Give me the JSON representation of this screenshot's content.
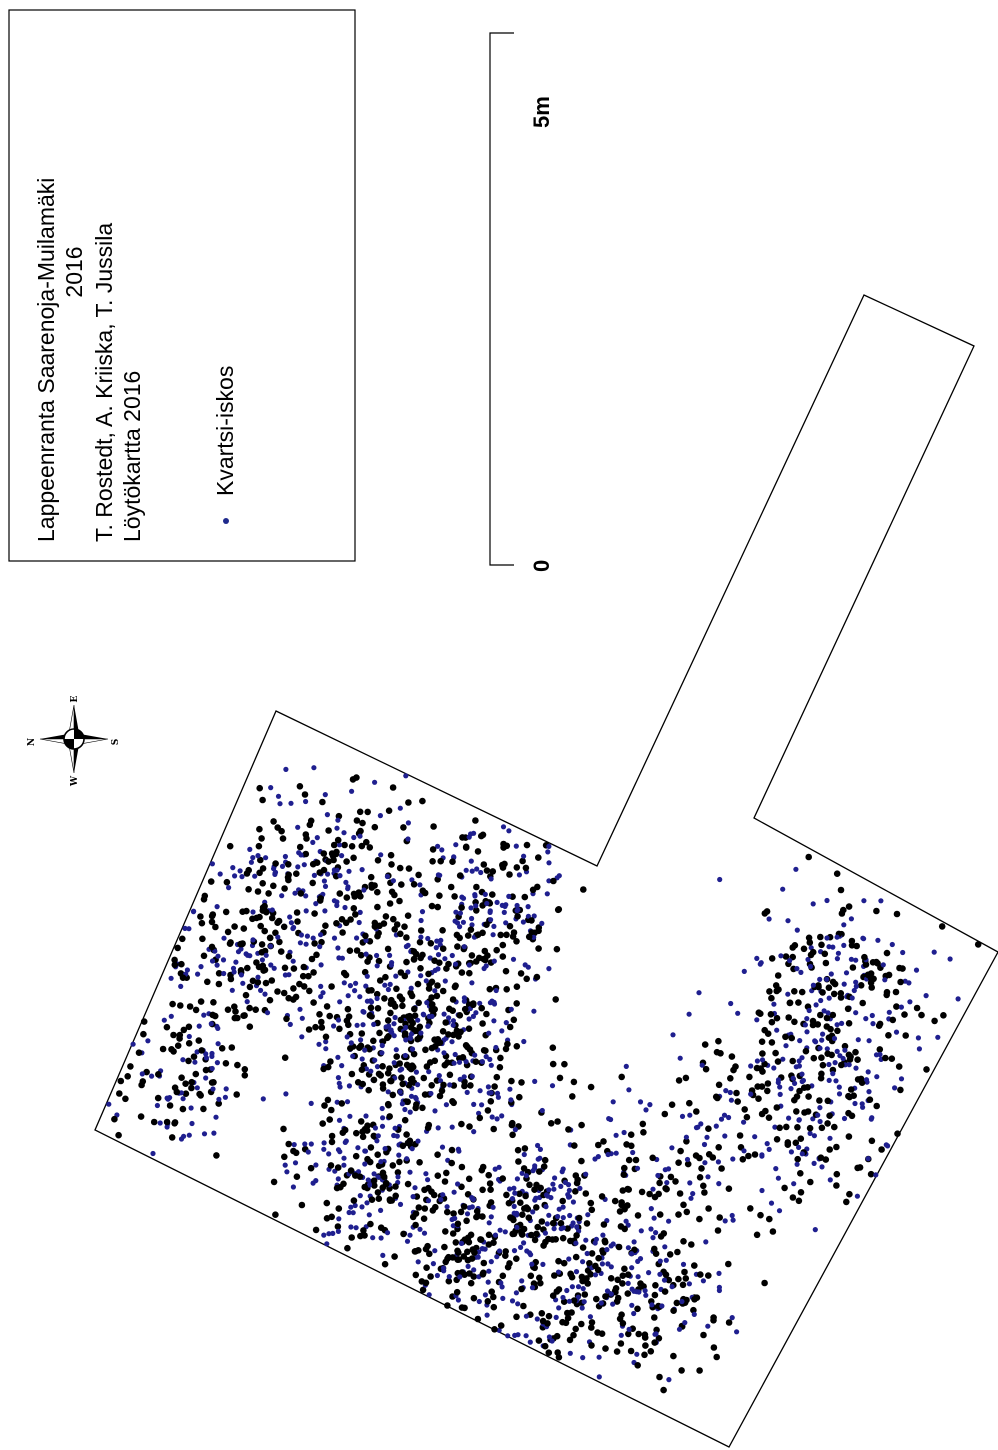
{
  "legend": {
    "title_line1": "Lappeenranta Saarenoja-Muilamäki",
    "title_line2": "2016",
    "authors": "T. Rostedt, A. Kriiska, T. Jussila",
    "map_name": "Löytökartta 2016",
    "symbol_label": "Kvartsi-iskos"
  },
  "scale_bar": {
    "start_label": "0",
    "end_label": "5m"
  },
  "north_arrow": {
    "north": "N",
    "east": "E",
    "south": "S",
    "west": "W"
  },
  "colors": {
    "background": "#ffffff",
    "outline": "#000000",
    "find_point": "#000000",
    "find_point_core": "#1f1f8f",
    "legend_symbol": "#1f2a8c"
  },
  "map": {
    "layer": "Kvartsi-iskos",
    "point_density": "dense scatter of quartz flake find points within excavation area"
  }
}
